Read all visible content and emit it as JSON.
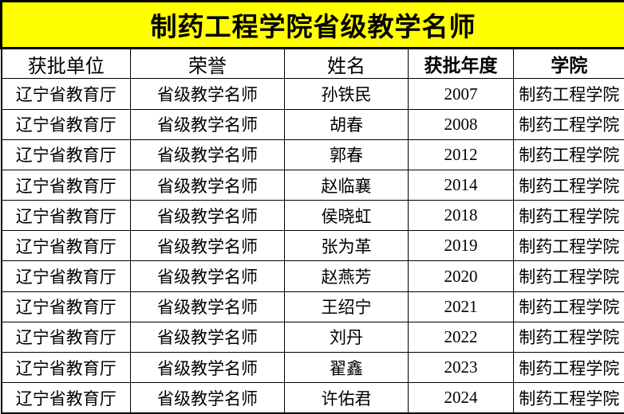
{
  "title": "制药工程学院省级教学名师",
  "colors": {
    "title_bg": "#FFFF00",
    "title_text": "#000000",
    "border": "#000000",
    "cell_bg": "#FFFFFF",
    "cell_text": "#000000"
  },
  "table": {
    "columns": [
      {
        "label": "获批单位",
        "bold": false
      },
      {
        "label": "荣誉",
        "bold": false
      },
      {
        "label": "姓名",
        "bold": false
      },
      {
        "label": "获批年度",
        "bold": true
      },
      {
        "label": "学院",
        "bold": true
      }
    ],
    "rows": [
      [
        "辽宁省教育厅",
        "省级教学名师",
        "孙铁民",
        "2007",
        "制药工程学院"
      ],
      [
        "辽宁省教育厅",
        "省级教学名师",
        "胡春",
        "2008",
        "制药工程学院"
      ],
      [
        "辽宁省教育厅",
        "省级教学名师",
        "郭春",
        "2012",
        "制药工程学院"
      ],
      [
        "辽宁省教育厅",
        "省级教学名师",
        "赵临襄",
        "2014",
        "制药工程学院"
      ],
      [
        "辽宁省教育厅",
        "省级教学名师",
        "侯晓虹",
        "2018",
        "制药工程学院"
      ],
      [
        "辽宁省教育厅",
        "省级教学名师",
        "张为革",
        "2019",
        "制药工程学院"
      ],
      [
        "辽宁省教育厅",
        "省级教学名师",
        "赵燕芳",
        "2020",
        "制药工程学院"
      ],
      [
        "辽宁省教育厅",
        "省级教学名师",
        "王绍宁",
        "2021",
        "制药工程学院"
      ],
      [
        "辽宁省教育厅",
        "省级教学名师",
        "刘丹",
        "2022",
        "制药工程学院"
      ],
      [
        "辽宁省教育厅",
        "省级教学名师",
        "翟鑫",
        "2023",
        "制药工程学院"
      ],
      [
        "辽宁省教育厅",
        "省级教学名师",
        "许佑君",
        "2024",
        "制药工程学院"
      ]
    ]
  }
}
